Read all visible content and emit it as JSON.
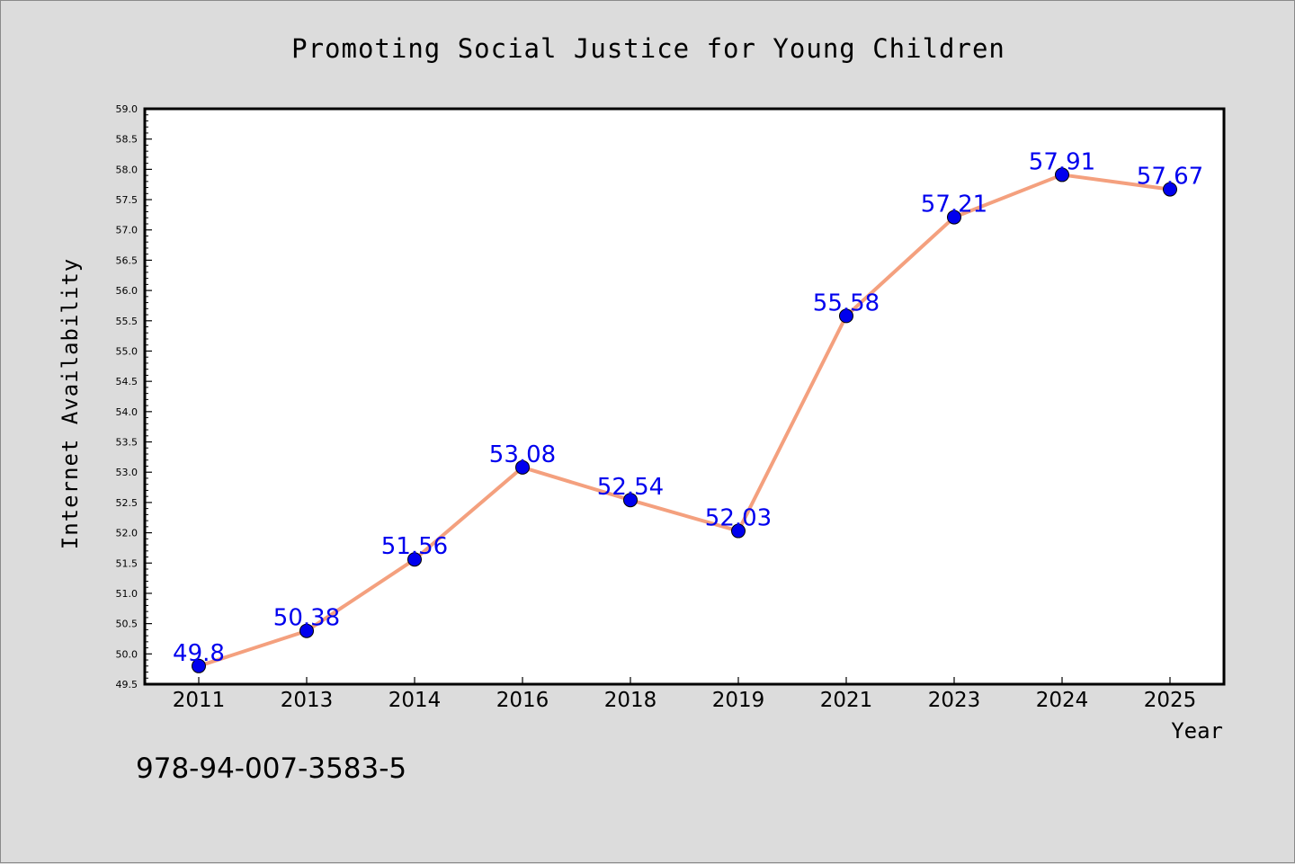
{
  "chart_data": {
    "type": "line",
    "title": "Promoting Social Justice for Young Children",
    "xlabel": "Year",
    "ylabel": "Internet Availability",
    "categories": [
      "2011",
      "2013",
      "2014",
      "2016",
      "2018",
      "2019",
      "2021",
      "2023",
      "2024",
      "2025"
    ],
    "series": [
      {
        "values": [
          49.8,
          50.38,
          51.56,
          53.08,
          52.54,
          52.03,
          55.58,
          57.21,
          57.91,
          57.67
        ],
        "data_labels": [
          "49.8",
          "50.38",
          "51.56",
          "53.08",
          "52.54",
          "52.03",
          "55.58",
          "57.21",
          "57.91",
          "57.67"
        ],
        "line_color": "#f4a07e",
        "marker_color": "#0000ee",
        "label_color": "#0000ee"
      }
    ],
    "ylim": [
      49.5,
      59.0
    ],
    "y_ticks": [
      "49.5",
      "50.0",
      "50.5",
      "51.0",
      "51.5",
      "52.0",
      "52.5",
      "53.0",
      "53.5",
      "54.0",
      "54.5",
      "55.0",
      "55.5",
      "56.0",
      "56.5",
      "57.0",
      "57.5",
      "58.0",
      "58.5",
      "59.0"
    ],
    "grid": false,
    "legend": "none",
    "background_color": "#dcdcdc",
    "plot_background_color": "#ffffff"
  },
  "footer": {
    "isbn": "978-94-007-3583-5"
  }
}
